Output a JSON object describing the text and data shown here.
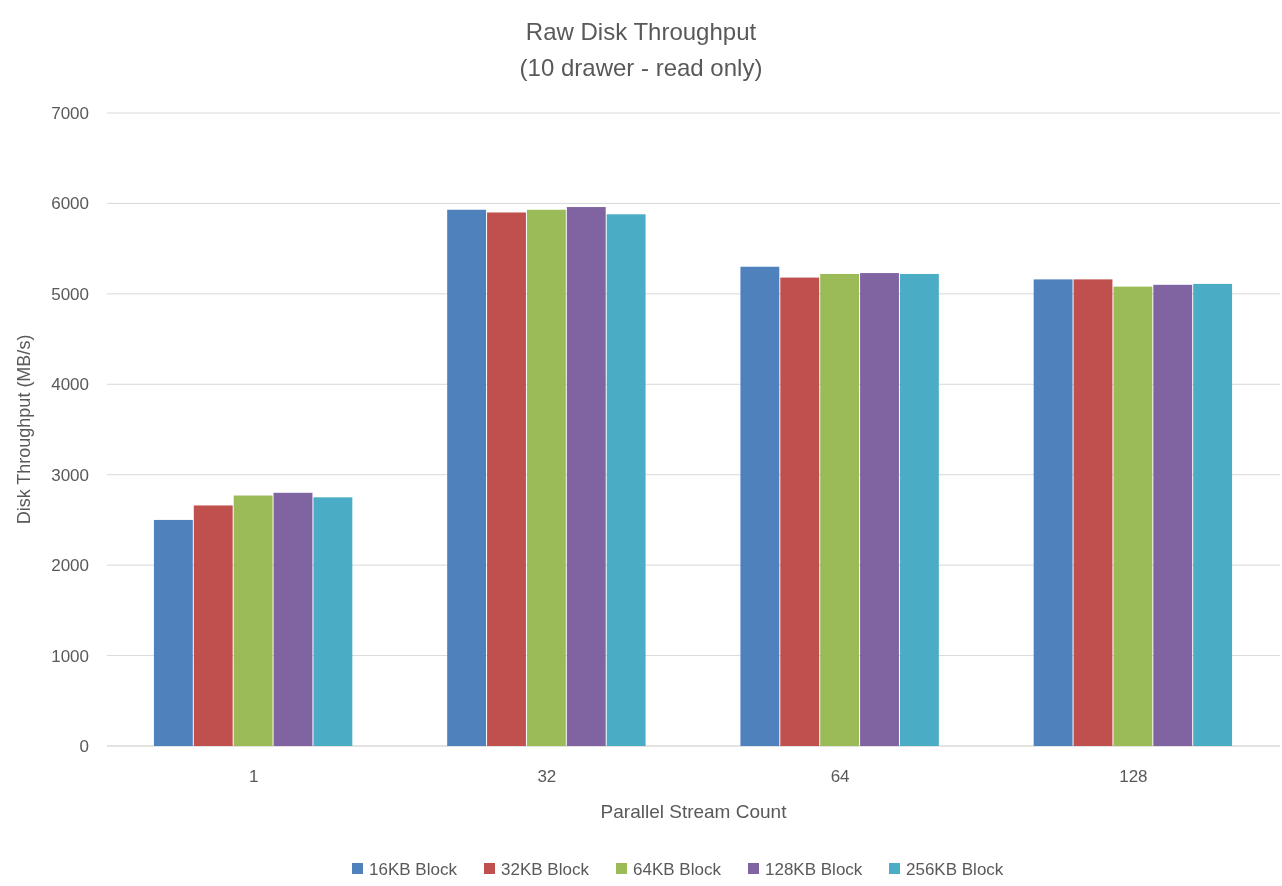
{
  "chart_data": {
    "type": "bar",
    "title": "Raw Disk Throughput",
    "subtitle": "(10 drawer - read only)",
    "xlabel": "Parallel Stream Count",
    "ylabel": "Disk Throughput (MB/s)",
    "categories": [
      "1",
      "32",
      "64",
      "128"
    ],
    "series": [
      {
        "name": "16KB Block",
        "color": "#4f81bd",
        "values": [
          2500,
          5930,
          5300,
          5160
        ]
      },
      {
        "name": "32KB Block",
        "color": "#c0504d",
        "values": [
          2660,
          5900,
          5180,
          5160
        ]
      },
      {
        "name": "64KB Block",
        "color": "#9bbb59",
        "values": [
          2770,
          5930,
          5220,
          5080
        ]
      },
      {
        "name": "128KB Block",
        "color": "#8064a2",
        "values": [
          2800,
          5960,
          5230,
          5100
        ]
      },
      {
        "name": "256KB Block",
        "color": "#4bacc6",
        "values": [
          2750,
          5880,
          5220,
          5110
        ]
      }
    ],
    "ylim": [
      0,
      7000
    ],
    "yticks": [
      0,
      1000,
      2000,
      3000,
      4000,
      5000,
      6000,
      7000
    ],
    "grid": "y",
    "legend": "bottom"
  }
}
